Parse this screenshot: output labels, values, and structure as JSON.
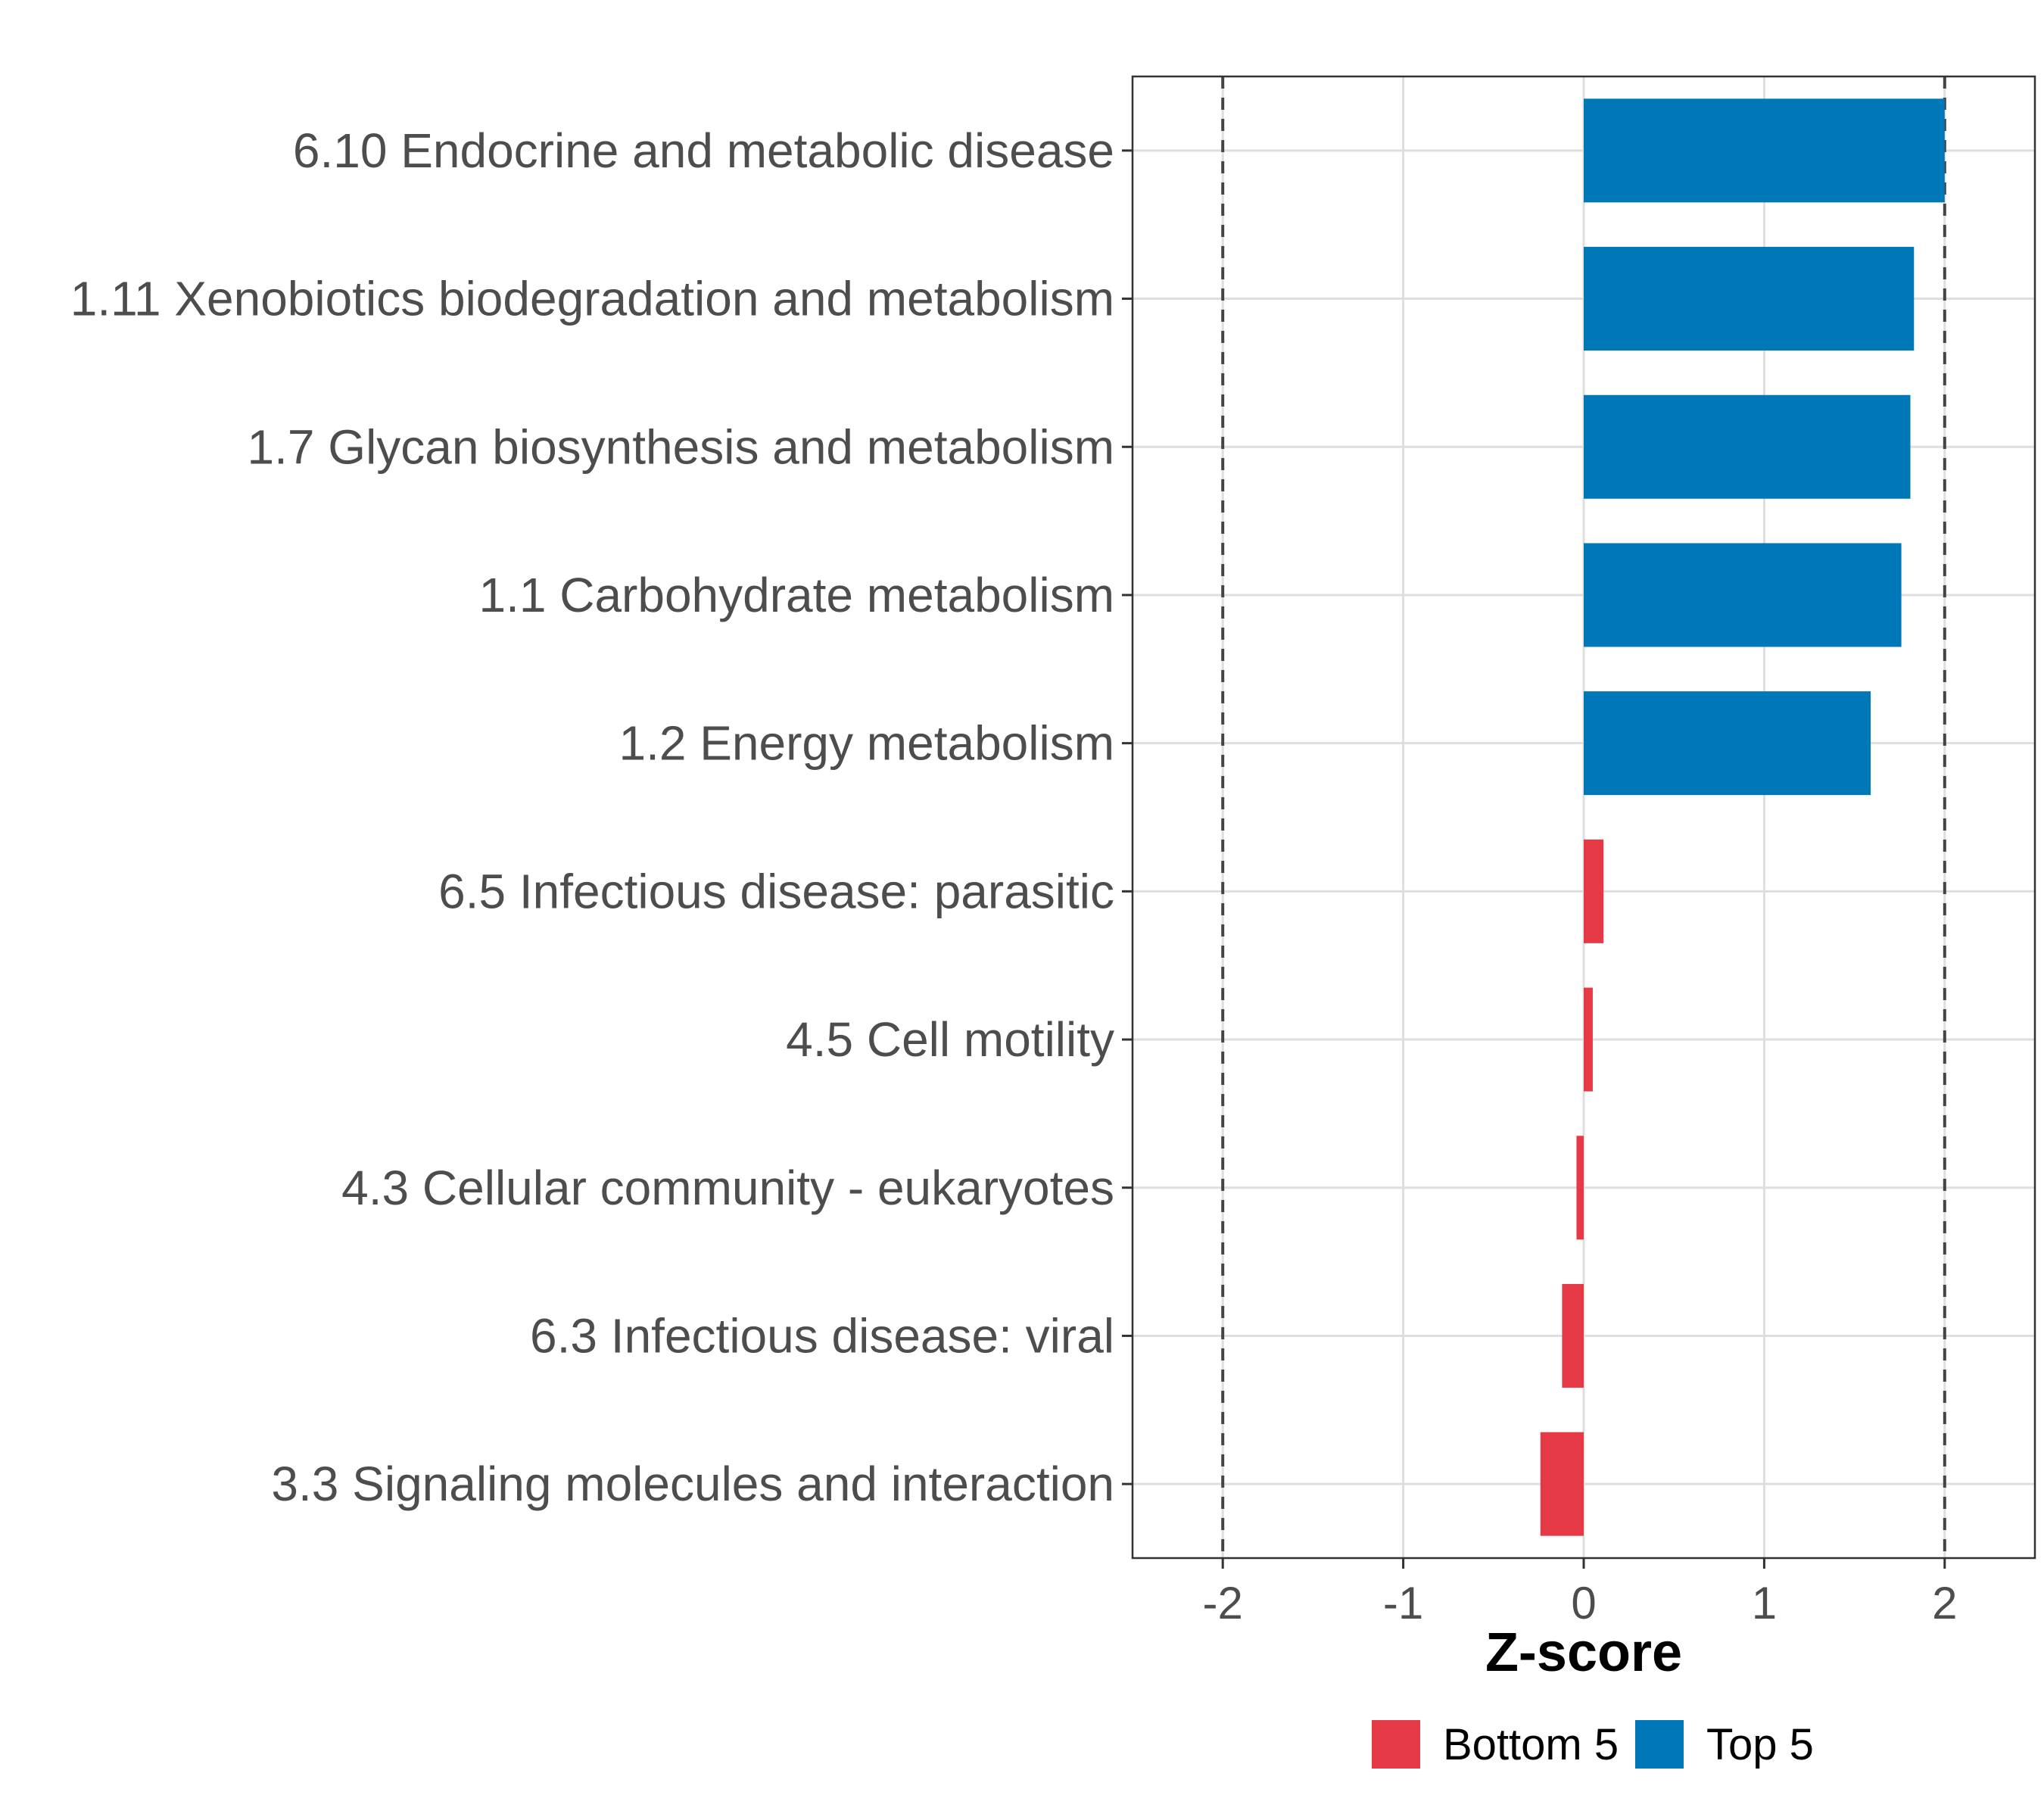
{
  "chart_data": {
    "type": "bar",
    "orientation": "horizontal",
    "title": "",
    "xlabel": "Z-score",
    "ylabel": "",
    "xlim": [
      -2.5,
      2.5
    ],
    "xticks": [
      -2,
      -1,
      0,
      1,
      2
    ],
    "tick_labels": [
      "-2",
      "-1",
      "0",
      "1",
      "2"
    ],
    "reference_lines": [
      -2,
      2
    ],
    "grid": true,
    "categories": [
      "6.10 Endocrine and metabolic disease",
      "1.11 Xenobiotics biodegradation and metabolism",
      "1.7 Glycan biosynthesis and metabolism",
      "1.1 Carbohydrate metabolism",
      "1.2 Energy metabolism",
      "6.5 Infectious disease: parasitic",
      "4.5 Cell motility",
      "4.3 Cellular community - eukaryotes",
      "6.3 Infectious disease: viral",
      "3.3 Signaling molecules and interaction"
    ],
    "values": [
      2.0,
      1.83,
      1.81,
      1.76,
      1.59,
      0.11,
      0.05,
      -0.04,
      -0.12,
      -0.24
    ],
    "groups": [
      "Top 5",
      "Top 5",
      "Top 5",
      "Top 5",
      "Top 5",
      "Bottom 5",
      "Bottom 5",
      "Bottom 5",
      "Bottom 5",
      "Bottom 5"
    ],
    "legend": {
      "position": "bottom",
      "entries": [
        {
          "label": "Bottom 5",
          "color": "#e63946"
        },
        {
          "label": "Top 5",
          "color": "#0077b6"
        }
      ]
    },
    "colors": {
      "Top 5": "#0077b6",
      "Bottom 5": "#e63946"
    }
  }
}
